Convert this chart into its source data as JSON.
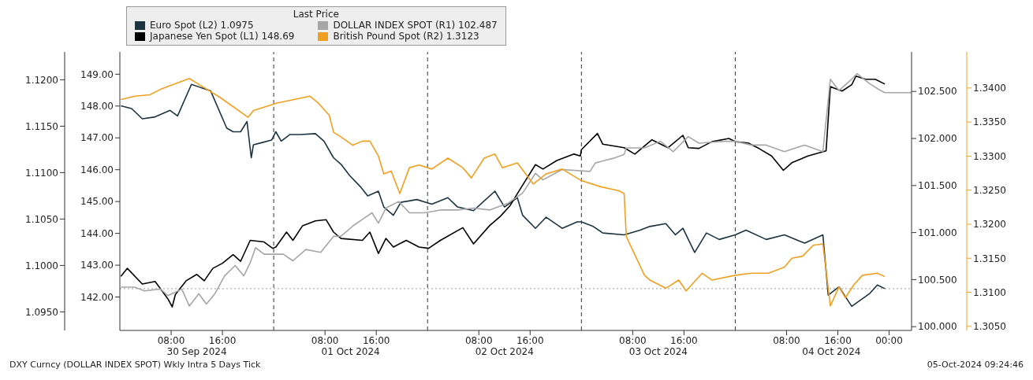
{
  "chart_data": [
    {
      "type": "line",
      "legend_title": "Last Price",
      "legend": "top left",
      "marker": "none",
      "line_style": "solid",
      "xlim": [
        "2024-09-30T00:00",
        "2024-10-05T03:30"
      ],
      "xticks": [
        {
          "value": "2024-09-30T08:00",
          "label": "08:00"
        },
        {
          "value": "2024-09-30T16:00",
          "label": "16:00"
        },
        {
          "value": "2024-10-01T08:00",
          "label": "08:00"
        },
        {
          "value": "2024-10-01T16:00",
          "label": "16:00"
        },
        {
          "value": "2024-10-02T08:00",
          "label": "08:00"
        },
        {
          "value": "2024-10-02T16:00",
          "label": "16:00"
        },
        {
          "value": "2024-10-03T08:00",
          "label": "08:00"
        },
        {
          "value": "2024-10-03T16:00",
          "label": "16:00"
        },
        {
          "value": "2024-10-04T08:00",
          "label": "08:00"
        },
        {
          "value": "2024-10-04T16:00",
          "label": "16:00"
        },
        {
          "value": "2024-10-05T00:00",
          "label": "00:00"
        }
      ],
      "x2lim": [
        "2024-09-30T00:00",
        "2024-10-05T03:30"
      ],
      "x2ticks": [
        {
          "value": "2024-09-30T12:00",
          "label": "30 Sep 2024"
        },
        {
          "value": "2024-10-01T12:00",
          "label": "01 Oct 2024"
        },
        {
          "value": "2024-10-02T12:00",
          "label": "02 Oct 2024"
        },
        {
          "value": "2024-10-03T12:00",
          "label": "03 Oct 2024"
        },
        {
          "value": "2024-10-04T15:00",
          "label": "04 Oct 2024"
        }
      ],
      "ylim": [
        140.95,
        149.7
      ],
      "yticks": [
        {
          "value": 142,
          "label": "142.00"
        },
        {
          "value": 143,
          "label": "143.00"
        },
        {
          "value": 144,
          "label": "144.00"
        },
        {
          "value": 145,
          "label": "145.00"
        },
        {
          "value": 146,
          "label": "146.00"
        },
        {
          "value": 147,
          "label": "147.00"
        },
        {
          "value": 148,
          "label": "148.00"
        },
        {
          "value": 149,
          "label": "149.00"
        }
      ],
      "y2lim": [
        1.093,
        1.123
      ],
      "y2ticks": [
        {
          "value": 1.095,
          "label": "1.0950"
        },
        {
          "value": 1.1,
          "label": "1.1000"
        },
        {
          "value": 1.105,
          "label": "1.1050"
        },
        {
          "value": 1.11,
          "label": "1.1100"
        },
        {
          "value": 1.115,
          "label": "1.1150"
        },
        {
          "value": 1.12,
          "label": "1.1200"
        }
      ],
      "ref_lines": [
        {
          "axis": "x",
          "value": "2024-10-01T00:00",
          "line_style": "dashed",
          "color": "#333333"
        },
        {
          "axis": "x",
          "value": "2024-10-02T00:00",
          "line_style": "dashed",
          "color": "#333333"
        },
        {
          "axis": "x",
          "value": "2024-10-03T00:00",
          "line_style": "dashed",
          "color": "#333333"
        },
        {
          "axis": "x",
          "value": "2024-10-04T00:00",
          "line_style": "dashed",
          "color": "#333333"
        },
        {
          "axis": "y2",
          "value": 1.0975,
          "line_style": "dotted",
          "color": "#999999"
        }
      ],
      "annotations": [
        "DXY Curncy (DOLLAR INDEX SPOT) Wkly Intra 5 Days  Tick",
        "05-Oct-2024 09:24:46"
      ],
      "series": [
        {
          "name": "Euro Spot (L2) 1.0975",
          "color": "#1c3340",
          "axis": "y2",
          "x": [
            "2024-09-30T00:10",
            "2024-09-30T01:50",
            "2024-09-30T03:30",
            "2024-09-30T05:30",
            "2024-09-30T07:50",
            "2024-09-30T09:00",
            "2024-09-30T11:10",
            "2024-09-30T14:10",
            "2024-09-30T16:40",
            "2024-09-30T17:40",
            "2024-09-30T18:50",
            "2024-09-30T19:50",
            "2024-09-30T20:30",
            "2024-09-30T20:50",
            "2024-09-30T22:00",
            "2024-09-30T23:40",
            "2024-10-01T00:20",
            "2024-10-01T01:10",
            "2024-10-01T02:30",
            "2024-10-01T04:10",
            "2024-10-01T06:30",
            "2024-10-01T07:50",
            "2024-10-01T09:20",
            "2024-10-01T10:30",
            "2024-10-01T11:50",
            "2024-10-01T13:30",
            "2024-10-01T14:40",
            "2024-10-01T16:20",
            "2024-10-01T17:10",
            "2024-10-01T18:40",
            "2024-10-01T19:50",
            "2024-10-01T22:20",
            "2024-10-02T00:40",
            "2024-10-02T03:10",
            "2024-10-02T04:40",
            "2024-10-02T07:10",
            "2024-10-02T10:30",
            "2024-10-02T12:00",
            "2024-10-02T14:00",
            "2024-10-02T14:50",
            "2024-10-02T16:50",
            "2024-10-02T18:30",
            "2024-10-02T21:00",
            "2024-10-02T23:20",
            "2024-10-03T00:00",
            "2024-10-03T01:50",
            "2024-10-03T03:20",
            "2024-10-03T06:40",
            "2024-10-03T09:10",
            "2024-10-03T10:40",
            "2024-10-03T13:10",
            "2024-10-03T14:40",
            "2024-10-03T15:50",
            "2024-10-03T17:40",
            "2024-10-03T19:30",
            "2024-10-03T21:30",
            "2024-10-04T00:00",
            "2024-10-04T01:40",
            "2024-10-04T04:50",
            "2024-10-04T07:40",
            "2024-10-04T10:50",
            "2024-10-04T13:40",
            "2024-10-04T14:30",
            "2024-10-04T16:10",
            "2024-10-04T18:10",
            "2024-10-04T21:00",
            "2024-10-04T22:10",
            "2024-10-04T23:20"
          ],
          "values": [
            1.1172,
            1.1169,
            1.1158,
            1.116,
            1.1167,
            1.1161,
            1.1195,
            1.1188,
            1.1148,
            1.1144,
            1.1144,
            1.1155,
            1.1116,
            1.113,
            1.1132,
            1.1135,
            1.1144,
            1.1134,
            1.1141,
            1.1141,
            1.1142,
            1.1134,
            1.1116,
            1.1109,
            1.1097,
            1.1085,
            1.1075,
            1.108,
            1.1063,
            1.1054,
            1.1068,
            1.1071,
            1.1066,
            1.1073,
            1.1063,
            1.1059,
            1.108,
            1.1063,
            1.1073,
            1.1054,
            1.104,
            1.1052,
            1.104,
            1.1047,
            1.1047,
            1.1042,
            1.1035,
            1.1033,
            1.1038,
            1.1042,
            1.1045,
            1.1033,
            1.104,
            1.1014,
            1.1035,
            1.1028,
            1.1033,
            1.1038,
            1.1028,
            1.1033,
            1.1024,
            1.1033,
            1.0968,
            1.0977,
            1.0956,
            1.097,
            1.0979,
            1.0975
          ]
        },
        {
          "name": "Japanese Yen Spot (L1) 148.69",
          "color": "#000000",
          "x": [
            "2024-09-30T00:10",
            "2024-09-30T01:10",
            "2024-09-30T03:30",
            "2024-09-30T05:30",
            "2024-09-30T07:30",
            "2024-09-30T08:10",
            "2024-09-30T08:40",
            "2024-09-30T10:20",
            "2024-09-30T12:00",
            "2024-09-30T13:10",
            "2024-09-30T14:30",
            "2024-09-30T16:00",
            "2024-09-30T17:40",
            "2024-09-30T18:50",
            "2024-09-30T20:20",
            "2024-09-30T22:30",
            "2024-09-30T23:50",
            "2024-10-01T00:20",
            "2024-10-01T02:00",
            "2024-10-01T03:00",
            "2024-10-01T04:30",
            "2024-10-01T06:30",
            "2024-10-01T08:10",
            "2024-10-01T09:20",
            "2024-10-01T10:30",
            "2024-10-01T13:50",
            "2024-10-01T15:00",
            "2024-10-01T16:20",
            "2024-10-01T17:30",
            "2024-10-01T18:40",
            "2024-10-01T20:40",
            "2024-10-01T22:40",
            "2024-10-02T00:10",
            "2024-10-02T02:00",
            "2024-10-02T05:30",
            "2024-10-02T07:10",
            "2024-10-02T09:40",
            "2024-10-02T11:20",
            "2024-10-02T12:50",
            "2024-10-02T14:30",
            "2024-10-02T16:50",
            "2024-10-02T18:00",
            "2024-10-02T20:10",
            "2024-10-02T22:50",
            "2024-10-02T23:50",
            "2024-10-03T00:00",
            "2024-10-03T02:30",
            "2024-10-03T03:20",
            "2024-10-03T06:40",
            "2024-10-03T08:20",
            "2024-10-03T11:00",
            "2024-10-03T13:30",
            "2024-10-03T15:50",
            "2024-10-03T16:40",
            "2024-10-03T18:20",
            "2024-10-03T20:20",
            "2024-10-03T23:00",
            "2024-10-04T00:00",
            "2024-10-04T02:00",
            "2024-10-04T03:40",
            "2024-10-04T05:40",
            "2024-10-04T07:30",
            "2024-10-04T08:50",
            "2024-10-04T11:20",
            "2024-10-04T14:10",
            "2024-10-04T14:50",
            "2024-10-04T15:20",
            "2024-10-04T16:40",
            "2024-10-04T18:10",
            "2024-10-04T18:50",
            "2024-10-04T20:20",
            "2024-10-04T21:50",
            "2024-10-04T23:20"
          ],
          "values": [
            142.65,
            142.9,
            142.41,
            142.49,
            141.94,
            141.69,
            142.08,
            142.51,
            142.71,
            142.51,
            142.9,
            143.06,
            143.33,
            143.12,
            143.78,
            143.73,
            143.53,
            143.57,
            144.04,
            143.78,
            144.24,
            144.39,
            144.43,
            144.04,
            143.84,
            143.78,
            144.04,
            143.37,
            143.84,
            143.57,
            143.78,
            143.57,
            143.53,
            143.78,
            144.18,
            143.67,
            144.24,
            144.53,
            144.86,
            145.41,
            146.16,
            146.02,
            146.29,
            146.49,
            146.43,
            146.63,
            147.14,
            146.8,
            146.69,
            146.49,
            146.94,
            146.69,
            147.08,
            146.69,
            146.67,
            146.88,
            146.98,
            146.88,
            146.84,
            146.67,
            146.43,
            145.98,
            146.22,
            146.43,
            146.59,
            148.61,
            148.57,
            148.47,
            148.67,
            148.94,
            148.84,
            148.84,
            148.69
          ]
        }
      ]
    },
    {
      "type": "line",
      "legend": "top left",
      "marker": "none",
      "line_style": "solid",
      "tick_labels": "y",
      "xlim": [
        "2024-09-30T00:00",
        "2024-10-05T03:30"
      ],
      "ylim": [
        99.96,
        102.92
      ],
      "yticks": [
        {
          "value": 100,
          "label": "100.000"
        },
        {
          "value": 100.5,
          "label": "100.500"
        },
        {
          "value": 101,
          "label": "101.000"
        },
        {
          "value": 101.5,
          "label": "101.500"
        },
        {
          "value": 102,
          "label": "102.000"
        },
        {
          "value": 102.5,
          "label": "102.500"
        }
      ],
      "y2lim": [
        1.3044,
        1.3453
      ],
      "y2ticks": [
        {
          "value": 1.305,
          "label": "1.3050"
        },
        {
          "value": 1.31,
          "label": "1.3100"
        },
        {
          "value": 1.315,
          "label": "1.3150"
        },
        {
          "value": 1.32,
          "label": "1.3200"
        },
        {
          "value": 1.325,
          "label": "1.3250"
        },
        {
          "value": 1.33,
          "label": "1.3300"
        },
        {
          "value": 1.335,
          "label": "1.3350"
        },
        {
          "value": 1.34,
          "label": "1.3400"
        }
      ],
      "series": [
        {
          "name": "DOLLAR INDEX SPOT (R1) 102.487",
          "color": "#a6a6a6",
          "x": [
            "2024-09-30T00:10",
            "2024-09-30T02:20",
            "2024-09-30T03:50",
            "2024-09-30T06:20",
            "2024-09-30T07:30",
            "2024-09-30T09:40",
            "2024-09-30T10:50",
            "2024-09-30T12:20",
            "2024-09-30T13:30",
            "2024-09-30T14:50",
            "2024-09-30T16:20",
            "2024-09-30T18:00",
            "2024-09-30T19:20",
            "2024-09-30T20:20",
            "2024-09-30T21:10",
            "2024-09-30T22:30",
            "2024-09-30T23:50",
            "2024-10-01T01:30",
            "2024-10-01T03:00",
            "2024-10-01T05:00",
            "2024-10-01T07:20",
            "2024-10-01T09:20",
            "2024-10-01T10:30",
            "2024-10-01T12:20",
            "2024-10-01T13:50",
            "2024-10-01T15:20",
            "2024-10-01T16:20",
            "2024-10-01T17:30",
            "2024-10-01T19:30",
            "2024-10-01T21:10",
            "2024-10-01T23:30",
            "2024-10-02T02:00",
            "2024-10-02T04:40",
            "2024-10-02T07:10",
            "2024-10-02T09:40",
            "2024-10-02T12:30",
            "2024-10-02T14:50",
            "2024-10-02T16:50",
            "2024-10-02T18:00",
            "2024-10-02T21:00",
            "2024-10-03T01:20",
            "2024-10-03T02:10",
            "2024-10-03T05:00",
            "2024-10-03T06:40",
            "2024-10-03T07:00",
            "2024-10-03T09:50",
            "2024-10-03T12:20",
            "2024-10-03T14:20",
            "2024-10-03T16:40",
            "2024-10-03T18:20",
            "2024-10-03T20:20",
            "2024-10-03T22:20",
            "2024-10-04T00:00",
            "2024-10-04T02:30",
            "2024-10-04T04:50",
            "2024-10-04T07:40",
            "2024-10-04T10:50",
            "2024-10-04T13:40",
            "2024-10-04T14:50",
            "2024-10-04T16:10",
            "2024-10-04T18:10",
            "2024-10-04T19:00",
            "2024-10-04T21:00",
            "2024-10-04T22:40",
            "2024-10-04T23:20",
            "2024-10-05T03:30"
          ],
          "values": [
            100.42,
            100.42,
            100.38,
            100.4,
            100.33,
            100.4,
            100.22,
            100.35,
            100.24,
            100.35,
            100.54,
            100.65,
            100.54,
            100.68,
            100.84,
            100.77,
            100.77,
            100.77,
            100.7,
            100.82,
            100.79,
            100.96,
            100.96,
            101.07,
            101.14,
            101.21,
            101.1,
            101.26,
            101.33,
            101.21,
            101.21,
            101.24,
            101.24,
            101.26,
            101.24,
            101.31,
            101.42,
            101.63,
            101.56,
            101.67,
            101.65,
            101.74,
            101.79,
            101.83,
            101.9,
            101.9,
            101.97,
            101.86,
            102.02,
            101.95,
            101.96,
            101.97,
            101.97,
            101.93,
            101.93,
            101.86,
            101.93,
            101.86,
            102.63,
            102.51,
            102.63,
            102.69,
            102.58,
            102.51,
            102.487,
            102.487
          ]
        },
        {
          "name": "British Pound Spot (R2) 1.3123",
          "color": "#f0a020",
          "axis": "y2",
          "x": [
            "2024-09-30T00:10",
            "2024-09-30T02:20",
            "2024-09-30T04:40",
            "2024-09-30T06:20",
            "2024-09-30T10:50",
            "2024-09-30T15:40",
            "2024-09-30T20:00",
            "2024-09-30T20:50",
            "2024-10-01T00:30",
            "2024-10-01T05:40",
            "2024-10-01T06:50",
            "2024-10-01T08:40",
            "2024-10-01T09:20",
            "2024-10-01T10:30",
            "2024-10-01T12:20",
            "2024-10-01T13:50",
            "2024-10-01T15:00",
            "2024-10-01T16:20",
            "2024-10-01T17:10",
            "2024-10-01T18:20",
            "2024-10-01T19:40",
            "2024-10-01T21:10",
            "2024-10-01T22:40",
            "2024-10-02T00:40",
            "2024-10-02T03:10",
            "2024-10-02T05:30",
            "2024-10-02T06:50",
            "2024-10-02T08:50",
            "2024-10-02T10:30",
            "2024-10-02T11:40",
            "2024-10-02T14:00",
            "2024-10-02T16:30",
            "2024-10-02T18:30",
            "2024-10-02T21:00",
            "2024-10-03T00:00",
            "2024-10-03T03:00",
            "2024-10-03T05:50",
            "2024-10-03T06:40",
            "2024-10-03T07:00",
            "2024-10-03T09:50",
            "2024-10-03T10:40",
            "2024-10-03T13:10",
            "2024-10-03T15:10",
            "2024-10-03T16:20",
            "2024-10-03T18:50",
            "2024-10-03T20:20",
            "2024-10-04T00:00",
            "2024-10-04T02:30",
            "2024-10-04T05:10",
            "2024-10-04T07:40",
            "2024-10-04T08:50",
            "2024-10-04T10:30",
            "2024-10-04T12:10",
            "2024-10-04T13:40",
            "2024-10-04T14:50",
            "2024-10-04T16:10",
            "2024-10-04T17:10",
            "2024-10-04T18:30",
            "2024-10-04T19:50",
            "2024-10-04T22:10",
            "2024-10-04T23:20"
          ],
          "values": [
            1.3383,
            1.3388,
            1.339,
            1.3398,
            1.3414,
            1.3386,
            1.3357,
            1.3367,
            1.3378,
            1.3388,
            1.3379,
            1.336,
            1.3335,
            1.3328,
            1.3316,
            1.3322,
            1.3322,
            1.33,
            1.3274,
            1.3278,
            1.3245,
            1.3283,
            1.3287,
            1.3281,
            1.3297,
            1.3283,
            1.3268,
            1.3297,
            1.3303,
            1.3283,
            1.329,
            1.3259,
            1.3274,
            1.3281,
            1.3264,
            1.3255,
            1.3249,
            1.3245,
            1.3182,
            1.3125,
            1.3118,
            1.3106,
            1.3118,
            1.3102,
            1.3128,
            1.3118,
            1.3125,
            1.3128,
            1.3128,
            1.3137,
            1.315,
            1.3153,
            1.3169,
            1.3171,
            1.308,
            1.3108,
            1.3092,
            1.3111,
            1.3125,
            1.3128,
            1.3123
          ]
        }
      ]
    }
  ]
}
